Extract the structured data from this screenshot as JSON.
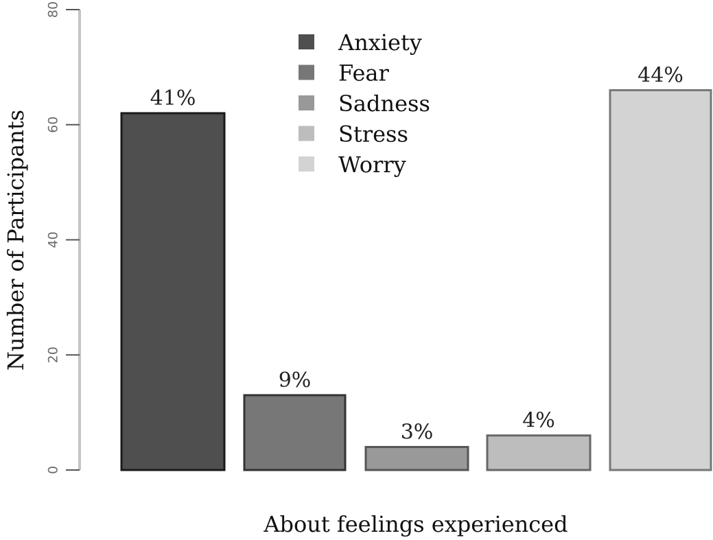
{
  "chart_data": {
    "type": "bar",
    "title": "",
    "xlabel": "About feelings experienced",
    "ylabel": "Number of Participants",
    "ylim": [
      0,
      80
    ],
    "yticks": [
      0,
      20,
      40,
      60,
      80
    ],
    "grid": false,
    "legend_position": "top-center",
    "categories": [
      "Anxiety",
      "Fear",
      "Sadness",
      "Stress",
      "Worry"
    ],
    "values": [
      62,
      13,
      4,
      6,
      66
    ],
    "bar_labels": [
      "41%",
      "9%",
      "3%",
      "4%",
      "44%"
    ],
    "colors": [
      "#4f4f4f",
      "#777777",
      "#999999",
      "#bdbdbd",
      "#d3d3d3"
    ],
    "edge_colors": [
      "#1a1a1a",
      "#333333",
      "#555555",
      "#666666",
      "#777777"
    ],
    "legend": [
      "Anxiety",
      "Fear",
      "Sadness",
      "Stress",
      "Worry"
    ]
  }
}
